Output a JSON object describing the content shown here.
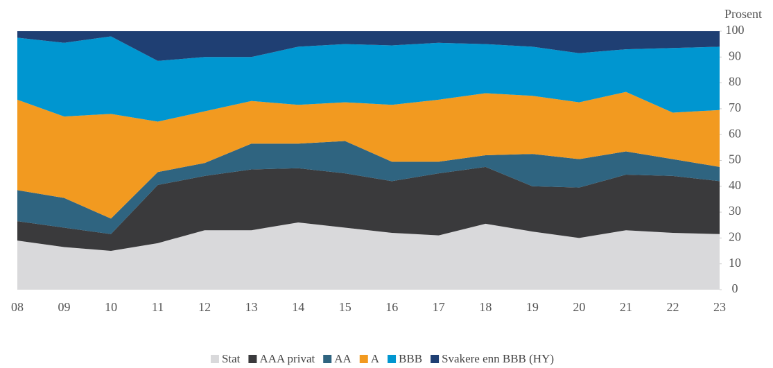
{
  "chart_data": {
    "type": "stacked-area",
    "y_label": "Prosent",
    "categories": [
      "08",
      "09",
      "10",
      "11",
      "12",
      "13",
      "14",
      "15",
      "16",
      "17",
      "18",
      "19",
      "20",
      "21",
      "22",
      "23"
    ],
    "ylim": [
      0,
      100
    ],
    "yticks": [
      0,
      10,
      20,
      30,
      40,
      50,
      60,
      70,
      80,
      90,
      100
    ],
    "series": [
      {
        "name": "Stat",
        "color": "#d9d9db",
        "values": [
          19,
          16.5,
          15,
          18,
          23,
          23,
          26,
          24,
          22,
          21,
          25.5,
          22.5,
          20,
          23,
          22,
          21.5
        ]
      },
      {
        "name": "AAA privat",
        "color": "#3a3a3c",
        "values": [
          7.5,
          7.5,
          6.5,
          22.5,
          21,
          23.5,
          21,
          21,
          20,
          24,
          22,
          17.5,
          19.5,
          21.5,
          22,
          20.5
        ]
      },
      {
        "name": "AA",
        "color": "#2f6480",
        "values": [
          12,
          11.5,
          6,
          5,
          5,
          10,
          9.5,
          12.5,
          7.5,
          4.5,
          4.5,
          12.5,
          11,
          9,
          6.5,
          5.5
        ]
      },
      {
        "name": "A",
        "color": "#f29a20",
        "values": [
          35,
          31.5,
          40.5,
          19.5,
          20,
          16.5,
          15,
          15,
          22,
          24,
          24,
          22.5,
          22,
          23,
          18,
          22
        ]
      },
      {
        "name": "BBB",
        "color": "#0096d0",
        "values": [
          24,
          28.5,
          30,
          23.5,
          21,
          17,
          22.5,
          22.5,
          23,
          22,
          19,
          19,
          19,
          16.5,
          25,
          24.5
        ]
      },
      {
        "name": "Svakere enn BBB (HY)",
        "color": "#1f3f73",
        "values": [
          2.5,
          4.5,
          2,
          11.5,
          10,
          10,
          6,
          5,
          5.5,
          4.5,
          5,
          6,
          8.5,
          7,
          6.5,
          6
        ]
      }
    ]
  }
}
